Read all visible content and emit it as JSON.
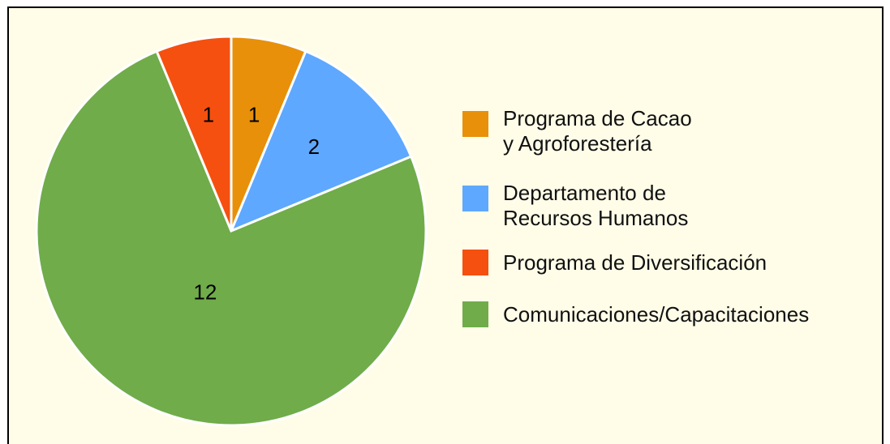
{
  "chart_data": {
    "type": "pie",
    "categories": [
      "Programa de Cacao\ny Agroforestería",
      "Departamento de\nRecursos Humanos",
      "Comunicaciones/Capacitaciones",
      "Programa de Diversificación"
    ],
    "values": [
      1,
      2,
      12,
      1
    ],
    "colors": [
      "#e8900a",
      "#5ea8ff",
      "#70ac4a",
      "#f5500f"
    ],
    "legend": "right"
  }
}
